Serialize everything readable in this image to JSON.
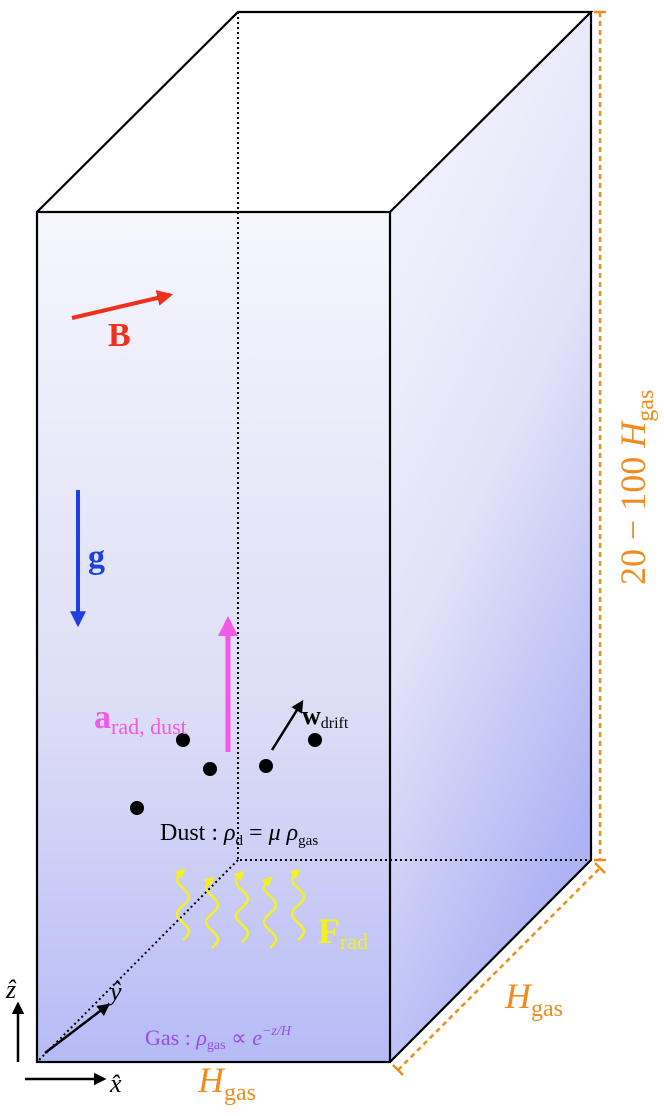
{
  "labels": {
    "magnetic_field": "B",
    "gravity": "g",
    "radiation_acceleration": [
      "a",
      "rad, dust"
    ],
    "drift_velocity": [
      "w",
      "drift"
    ],
    "dust_equation": [
      "Dust : ",
      "ρ",
      "d",
      " = ",
      "μ",
      " ρ",
      "gas"
    ],
    "radiation_flux": [
      "F",
      "rad"
    ],
    "gas_equation": [
      "Gas : ",
      "ρ",
      "gas",
      " ∝ ",
      "e",
      "−z/H"
    ],
    "axis_x": "x̂",
    "axis_y": "ŷ",
    "axis_z": "ẑ",
    "box_height": [
      "20 − 100 ",
      "H",
      "gas"
    ],
    "box_depth": [
      "H",
      "gas"
    ],
    "box_width": [
      "H",
      "gas"
    ]
  }
}
